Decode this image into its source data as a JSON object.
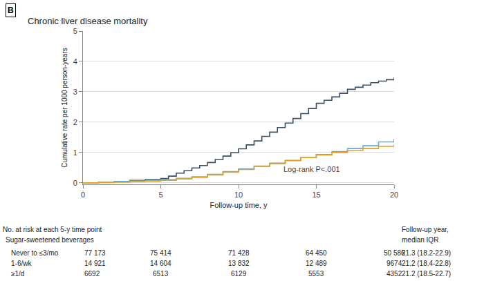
{
  "chart_data": {
    "type": "step",
    "title": "Chronic liver disease mortality",
    "panel_label": "B",
    "xlabel": "Follow-up time, y",
    "ylabel": "Cumulative rate per 1000 person-years",
    "xlim": [
      0,
      20
    ],
    "ylim": [
      -0.05,
      5
    ],
    "xticks": [
      0,
      5,
      10,
      15,
      20
    ],
    "yticks": [
      0,
      1,
      2,
      3,
      4,
      5
    ],
    "grid": "y",
    "series": [
      {
        "color": "#3A5068",
        "x": [
          0,
          1,
          2,
          3,
          4,
          5,
          5.5,
          6,
          6.5,
          7,
          7.5,
          8,
          8.5,
          9,
          9.5,
          10,
          10.5,
          11,
          11.5,
          12,
          12.5,
          13,
          13.5,
          14,
          14.5,
          15,
          15.5,
          16,
          16.5,
          17,
          17.5,
          18,
          18.5,
          19,
          19.5,
          20
        ],
        "values": [
          0,
          0.02,
          0.04,
          0.08,
          0.11,
          0.14,
          0.22,
          0.32,
          0.4,
          0.49,
          0.57,
          0.67,
          0.77,
          0.88,
          0.99,
          1.12,
          1.25,
          1.38,
          1.53,
          1.67,
          1.82,
          1.97,
          2.12,
          2.28,
          2.45,
          2.62,
          2.72,
          2.83,
          2.95,
          3.08,
          3.15,
          3.22,
          3.3,
          3.35,
          3.4,
          3.47
        ]
      },
      {
        "color": "#5BAFD6",
        "x": [
          0,
          1,
          2,
          3,
          4,
          5,
          6,
          7,
          8,
          9,
          10,
          11,
          12,
          13,
          14,
          15,
          16,
          17,
          18,
          19,
          20
        ],
        "values": [
          0,
          0.02,
          0.04,
          0.06,
          0.08,
          0.1,
          0.15,
          0.2,
          0.28,
          0.37,
          0.46,
          0.55,
          0.65,
          0.74,
          0.83,
          0.93,
          1.03,
          1.13,
          1.22,
          1.35,
          1.45
        ]
      },
      {
        "color": "#E8A020",
        "x": [
          0,
          1,
          2,
          3,
          4,
          5,
          6,
          7,
          8,
          9,
          10,
          11,
          12,
          13,
          14,
          15,
          16,
          17,
          18,
          19,
          20
        ],
        "values": [
          0,
          0.01,
          0.02,
          0.04,
          0.06,
          0.08,
          0.13,
          0.18,
          0.26,
          0.35,
          0.44,
          0.54,
          0.63,
          0.73,
          0.83,
          0.92,
          1.0,
          1.07,
          1.13,
          1.2,
          1.27
        ]
      }
    ],
    "annotations": [
      "Log-rank P<.001"
    ],
    "table": {
      "header": [
        "No. at risk at each 5-y time point",
        "Sugar-sweetened beverages"
      ],
      "right_header": [
        "Follow-up year,",
        "median IQR"
      ],
      "rows": [
        {
          "label": "Never to ≤3/mo",
          "counts": [
            "77 173",
            "75 414",
            "71 428",
            "64 450",
            "50 586"
          ],
          "followup": "21.3 (18.2-22.9)"
        },
        {
          "label": "1-6/wk",
          "counts": [
            "14 921",
            "14 604",
            "13 832",
            "12 489",
            "9674"
          ],
          "followup": "21.2 (18.4-22.8)"
        },
        {
          "label": "≥1/d",
          "counts": [
            "6692",
            "6513",
            "6129",
            "5553",
            "4352"
          ],
          "followup": "21.2 (18.5-22.7)"
        }
      ]
    }
  }
}
